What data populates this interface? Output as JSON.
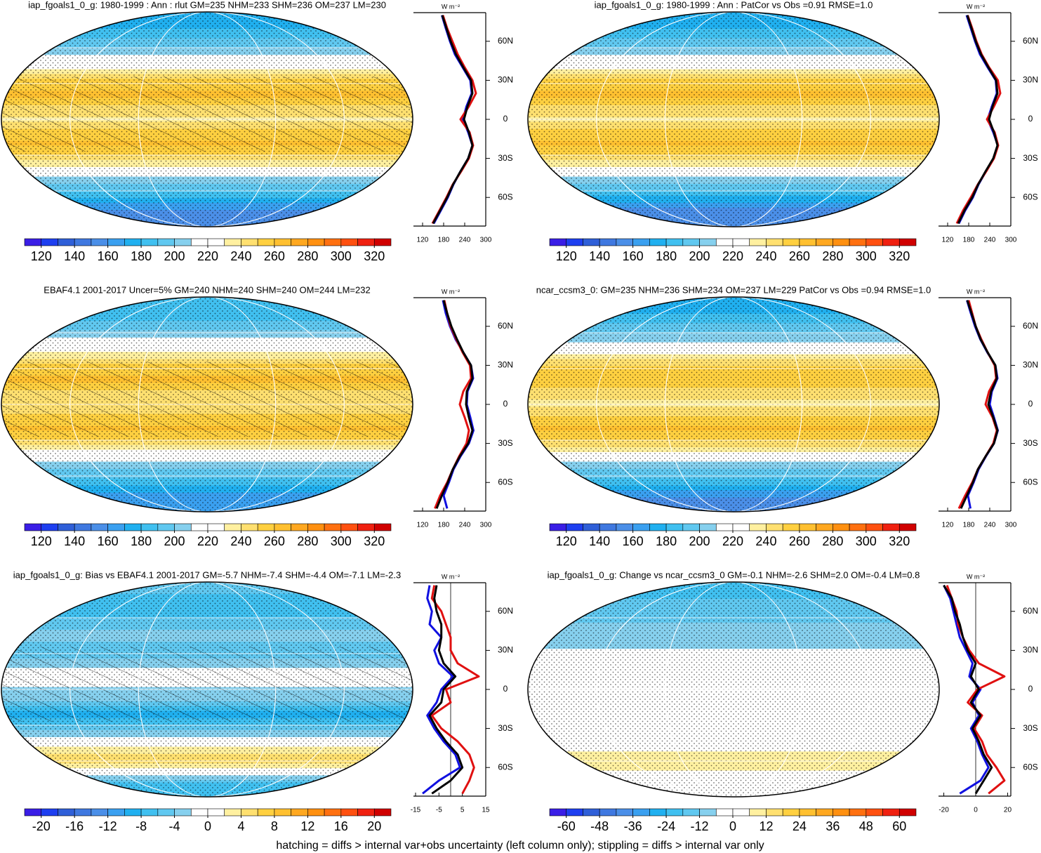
{
  "chart_data": [
    {
      "type": "map-zonal",
      "title": "iap_fgoals1_0_g: 1980-1999 : Ann : rlut GM=235 NHM=233 SHM=236 OM=237 LM=230",
      "hatching": true,
      "colorbar": {
        "lim": [
          110,
          330
        ],
        "ticks": [
          120,
          140,
          160,
          180,
          200,
          220,
          240,
          260,
          280,
          300,
          320
        ],
        "colors": [
          "#3a1ee6",
          "#1e3ff0",
          "#2f5fd8",
          "#3f78e0",
          "#4b8fe8",
          "#3aa0f0",
          "#20b0f0",
          "#40c0f0",
          "#60c8f0",
          "#86d0ee",
          "#ffffff",
          "#ffffff",
          "#fff0a0",
          "#ffe070",
          "#ffd040",
          "#ffc030",
          "#ffa820",
          "#ff9010",
          "#ff7010",
          "#ff5010",
          "#f02010",
          "#d00000"
        ]
      },
      "zonal": {
        "unit_label": "W m⁻²",
        "xlim": [
          100,
          300
        ],
        "xticks": [
          120,
          180,
          240,
          300
        ],
        "ylim": [
          -82,
          82
        ],
        "yticks": [
          {
            "value": -60,
            "label": "60S"
          },
          {
            "value": -30,
            "label": "30S"
          },
          0,
          {
            "value": 30,
            "label": "30N"
          },
          {
            "value": 60,
            "label": "60N"
          }
        ],
        "zero_line": false,
        "lat": [
          -80,
          -70,
          -60,
          -50,
          -40,
          -30,
          -20,
          -10,
          0,
          10,
          20,
          30,
          40,
          50,
          60,
          70,
          80
        ],
        "series": [
          {
            "color": "#1010e0",
            "values": [
              152,
              172,
              192,
              208,
              228,
              250,
              262,
              250,
              235,
              245,
              260,
              256,
              234,
              212,
              198,
              186,
              175
            ]
          },
          {
            "color": "#e01010",
            "values": [
              148,
              168,
              188,
              206,
              230,
              252,
              264,
              254,
              228,
              252,
              272,
              262,
              240,
              220,
              205,
              190,
              178
            ]
          },
          {
            "color": "#000000",
            "values": [
              150,
              170,
              190,
              207,
              228,
              250,
              262,
              252,
              238,
              248,
              262,
              258,
              236,
              215,
              200,
              188,
              176
            ]
          }
        ]
      }
    },
    {
      "type": "map-zonal",
      "title": "iap_fgoals1_0_g: 1980-1999 : Ann : PatCor vs Obs =0.91 RMSE=1.0",
      "hatching": false,
      "colorbar": {
        "lim": [
          110,
          330
        ],
        "ticks": [
          120,
          140,
          160,
          180,
          200,
          220,
          240,
          260,
          280,
          300,
          320
        ],
        "colors": [
          "#3a1ee6",
          "#1e3ff0",
          "#2f5fd8",
          "#3f78e0",
          "#4b8fe8",
          "#3aa0f0",
          "#20b0f0",
          "#40c0f0",
          "#60c8f0",
          "#86d0ee",
          "#ffffff",
          "#ffffff",
          "#fff0a0",
          "#ffe070",
          "#ffd040",
          "#ffc030",
          "#ffa820",
          "#ff9010",
          "#ff7010",
          "#ff5010",
          "#f02010",
          "#d00000"
        ]
      },
      "zonal": {
        "unit_label": "W m⁻²",
        "xlim": [
          100,
          300
        ],
        "xticks": [
          120,
          180,
          240,
          300
        ],
        "ylim": [
          -82,
          82
        ],
        "yticks": [
          {
            "value": -60,
            "label": "60S"
          },
          {
            "value": -30,
            "label": "30S"
          },
          0,
          {
            "value": 30,
            "label": "30N"
          },
          {
            "value": 60,
            "label": "60N"
          }
        ],
        "zero_line": false,
        "lat": [
          -80,
          -70,
          -60,
          -50,
          -40,
          -30,
          -20,
          -10,
          0,
          10,
          20,
          30,
          40,
          50,
          60,
          70,
          80
        ],
        "series": [
          {
            "color": "#1010e0",
            "values": [
              152,
              170,
              192,
              208,
              229,
              251,
              263,
              250,
              234,
              246,
              260,
              257,
              234,
              212,
              198,
              186,
              174
            ]
          },
          {
            "color": "#e01010",
            "values": [
              146,
              164,
              186,
              206,
              230,
              252,
              264,
              254,
              232,
              252,
              270,
              263,
              238,
              217,
              202,
              190,
              177
            ]
          },
          {
            "color": "#000000",
            "values": [
              150,
              168,
              190,
              207,
              228,
              250,
              262,
              252,
              238,
              248,
              262,
              258,
              236,
              215,
              200,
              188,
              176
            ]
          }
        ]
      }
    },
    {
      "type": "map-zonal",
      "title": "EBAF4.1 2001-2017 Uncer=5% GM=240 NHM=240 SHM=240 OM=244 LM=232",
      "hatching": true,
      "colorbar": {
        "lim": [
          110,
          330
        ],
        "ticks": [
          120,
          140,
          160,
          180,
          200,
          220,
          240,
          260,
          280,
          300,
          320
        ],
        "colors": [
          "#3a1ee6",
          "#1e3ff0",
          "#2f5fd8",
          "#3f78e0",
          "#4b8fe8",
          "#3aa0f0",
          "#20b0f0",
          "#40c0f0",
          "#60c8f0",
          "#86d0ee",
          "#ffffff",
          "#ffffff",
          "#fff0a0",
          "#ffe070",
          "#ffd040",
          "#ffc030",
          "#ffa820",
          "#ff9010",
          "#ff7010",
          "#ff5010",
          "#f02010",
          "#d00000"
        ]
      },
      "zonal": {
        "unit_label": "W m⁻²",
        "xlim": [
          100,
          300
        ],
        "xticks": [
          120,
          180,
          240,
          300
        ],
        "ylim": [
          -82,
          82
        ],
        "yticks": [
          {
            "value": -60,
            "label": "60S"
          },
          {
            "value": -30,
            "label": "30S"
          },
          0,
          {
            "value": 30,
            "label": "30N"
          },
          {
            "value": 60,
            "label": "60N"
          }
        ],
        "zero_line": false,
        "lat": [
          -80,
          -70,
          -60,
          -50,
          -40,
          -30,
          -20,
          -10,
          0,
          10,
          20,
          30,
          40,
          50,
          60,
          70,
          80
        ],
        "series": [
          {
            "color": "#1010e0",
            "values": [
              190,
              180,
              195,
              208,
              228,
              252,
              265,
              256,
              246,
              248,
              264,
              258,
              236,
              214,
              198,
              186,
              178
            ]
          },
          {
            "color": "#e01010",
            "values": [
              155,
              170,
              190,
              206,
              224,
              245,
              252,
              240,
              226,
              236,
              258,
              255,
              234,
              216,
              200,
              190,
              182
            ]
          },
          {
            "color": "#000000",
            "values": [
              160,
              175,
              192,
              206,
              226,
              250,
              262,
              252,
              244,
              246,
              262,
              258,
              236,
              218,
              202,
              190,
              180
            ]
          }
        ]
      }
    },
    {
      "type": "map-zonal",
      "title": "ncar_ccsm3_0: GM=235 NHM=236 SHM=234 OM=237 LM=229 PatCor vs Obs =0.94 RMSE=1.0",
      "hatching": false,
      "colorbar": {
        "lim": [
          110,
          330
        ],
        "ticks": [
          120,
          140,
          160,
          180,
          200,
          220,
          240,
          260,
          280,
          300,
          320
        ],
        "colors": [
          "#3a1ee6",
          "#1e3ff0",
          "#2f5fd8",
          "#3f78e0",
          "#4b8fe8",
          "#3aa0f0",
          "#20b0f0",
          "#40c0f0",
          "#60c8f0",
          "#86d0ee",
          "#ffffff",
          "#ffffff",
          "#fff0a0",
          "#ffe070",
          "#ffd040",
          "#ffc030",
          "#ffa820",
          "#ff9010",
          "#ff7010",
          "#ff5010",
          "#f02010",
          "#d00000"
        ]
      },
      "zonal": {
        "unit_label": "W m⁻²",
        "xlim": [
          100,
          300
        ],
        "xticks": [
          120,
          180,
          240,
          300
        ],
        "ylim": [
          -82,
          82
        ],
        "yticks": [
          {
            "value": -60,
            "label": "60S"
          },
          {
            "value": -30,
            "label": "30S"
          },
          0,
          {
            "value": 30,
            "label": "30N"
          },
          {
            "value": 60,
            "label": "60N"
          }
        ],
        "zero_line": false,
        "lat": [
          -80,
          -70,
          -60,
          -50,
          -40,
          -30,
          -20,
          -10,
          0,
          10,
          20,
          30,
          40,
          50,
          60,
          70,
          80
        ],
        "series": [
          {
            "color": "#1010e0",
            "values": [
              185,
              178,
              194,
              208,
              229,
              252,
              263,
              252,
              240,
              246,
              262,
              256,
              233,
              213,
              198,
              186,
              175
            ]
          },
          {
            "color": "#e01010",
            "values": [
              152,
              170,
              190,
              206,
              228,
              250,
              260,
              248,
              228,
              238,
              258,
              254,
              234,
              216,
              200,
              190,
              180
            ]
          },
          {
            "color": "#000000",
            "values": [
              158,
              175,
              192,
              206,
              228,
              252,
              262,
              250,
              236,
              244,
              260,
              256,
              234,
              214,
              200,
              188,
              176
            ]
          }
        ]
      }
    },
    {
      "type": "map-zonal",
      "title": "iap_fgoals1_0_g: Bias vs EBAF4.1 2001-2017 GM=-5.7 NHM=-7.4 SHM=-4.4 OM=-7.1 LM=-2.3",
      "hatching": true,
      "colorbar": {
        "lim": [
          -22,
          22
        ],
        "ticks": [
          -20,
          -16,
          -12,
          -8,
          -4,
          0,
          4,
          8,
          12,
          16,
          20
        ],
        "colors": [
          "#3a1ee6",
          "#1e3ff0",
          "#2f5fd8",
          "#3f78e0",
          "#4b8fe8",
          "#3aa0f0",
          "#20b0f0",
          "#40c0f0",
          "#60c8f0",
          "#86d0ee",
          "#ffffff",
          "#ffffff",
          "#fff0a0",
          "#ffe070",
          "#ffd040",
          "#ffc030",
          "#ffa820",
          "#ff9010",
          "#ff7010",
          "#ff5010",
          "#f02010",
          "#d00000"
        ]
      },
      "zonal": {
        "unit_label": "W m⁻²",
        "xlim": [
          -15,
          15
        ],
        "xticks": [
          -15,
          -5,
          5,
          15
        ],
        "ylim": [
          -82,
          82
        ],
        "yticks": [
          {
            "value": -60,
            "label": "60S"
          },
          {
            "value": -30,
            "label": "30S"
          },
          0,
          {
            "value": 30,
            "label": "30N"
          },
          {
            "value": 60,
            "label": "60N"
          }
        ],
        "zero_line": true,
        "lat": [
          -80,
          -70,
          -60,
          -50,
          -40,
          -30,
          -20,
          -10,
          0,
          10,
          20,
          30,
          40,
          50,
          60,
          70,
          80
        ],
        "series": [
          {
            "color": "#1010e0",
            "values": [
              -12,
              -5,
              4,
              2,
              -3,
              -7,
              -10,
              -6,
              -4,
              1,
              -5,
              -7,
              -4,
              -9,
              -8,
              -10,
              -9
            ]
          },
          {
            "color": "#e01010",
            "values": [
              5,
              8,
              10,
              8,
              3,
              -4,
              -8,
              0,
              -2,
              12,
              3,
              0,
              0,
              -2,
              -4,
              -8,
              -7
            ]
          },
          {
            "color": "#000000",
            "values": [
              -8,
              0,
              5,
              3,
              -2,
              -6,
              -9,
              -4,
              -3,
              2,
              -3,
              -5,
              -4,
              -4,
              -6,
              -7,
              -6
            ]
          }
        ]
      }
    },
    {
      "type": "map-zonal",
      "title": "iap_fgoals1_0_g: Change vs ncar_ccsm3_0 GM=-0.1 NHM=-2.6 SHM=2.0 OM=-0.4 LM=0.8",
      "hatching": false,
      "colorbar": {
        "lim": [
          -66,
          66
        ],
        "ticks": [
          -60,
          -48,
          -36,
          -24,
          -12,
          0,
          12,
          24,
          36,
          48,
          60
        ],
        "colors": [
          "#3a1ee6",
          "#1e3ff0",
          "#2f5fd8",
          "#3f78e0",
          "#4b8fe8",
          "#3aa0f0",
          "#20b0f0",
          "#40c0f0",
          "#60c8f0",
          "#86d0ee",
          "#ffffff",
          "#ffffff",
          "#fff0a0",
          "#ffe070",
          "#ffd040",
          "#ffc030",
          "#ffa820",
          "#ff9010",
          "#ff7010",
          "#ff5010",
          "#f02010",
          "#d00000"
        ]
      },
      "zonal": {
        "unit_label": "W m⁻²",
        "xlim": [
          -22,
          22
        ],
        "xticks": [
          -20,
          0,
          20
        ],
        "ylim": [
          -82,
          82
        ],
        "yticks": [
          {
            "value": -60,
            "label": "60S"
          },
          {
            "value": -30,
            "label": "30S"
          },
          0,
          {
            "value": 30,
            "label": "30N"
          },
          {
            "value": 60,
            "label": "60N"
          }
        ],
        "zero_line": true,
        "lat": [
          -80,
          -70,
          -60,
          -50,
          -40,
          -30,
          -20,
          -10,
          0,
          10,
          20,
          30,
          40,
          50,
          60,
          70,
          80
        ],
        "series": [
          {
            "color": "#1010e0",
            "values": [
              -10,
              3,
              8,
              4,
              1,
              -3,
              2,
              -2,
              3,
              -4,
              -2,
              -6,
              -10,
              -12,
              -14,
              -16,
              -20
            ]
          },
          {
            "color": "#e01010",
            "values": [
              8,
              18,
              13,
              7,
              4,
              -1,
              4,
              -5,
              1,
              18,
              2,
              -4,
              -8,
              -11,
              -12,
              -15,
              -18
            ]
          },
          {
            "color": "#000000",
            "values": [
              0,
              5,
              10,
              5,
              2,
              -2,
              3,
              -3,
              2,
              -3,
              0,
              -5,
              -8,
              -10,
              -13,
              -15,
              -20
            ]
          }
        ]
      }
    }
  ],
  "note": "hatching = diffs > internal var+obs uncertainty (left column only); stippling = diffs > internal var only"
}
